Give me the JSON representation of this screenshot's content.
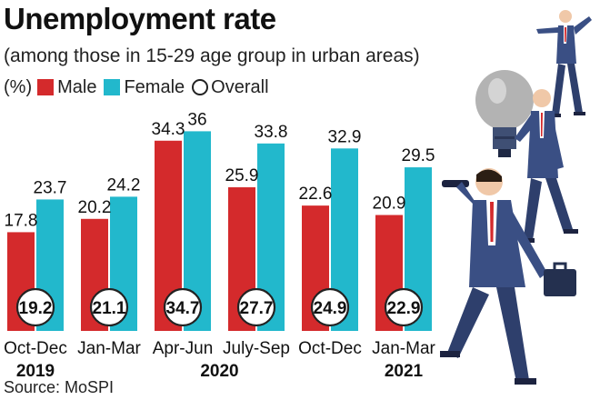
{
  "title": "Unemployment rate",
  "subtitle": "(among those in 15-29 age group in urban areas)",
  "legend": {
    "unit": "(%)",
    "male": "Male",
    "female": "Female",
    "overall": "Overall"
  },
  "colors": {
    "male": "#d42a2c",
    "female": "#22b8cc",
    "text": "#111111"
  },
  "source": "Source: MoSPI",
  "chart_data": {
    "type": "bar",
    "title": "Unemployment rate",
    "subtitle": "(among those in 15-29 age group in urban areas)",
    "ylabel": "(%)",
    "ylim": [
      0,
      38
    ],
    "categories": [
      "Oct-Dec",
      "Jan-Mar",
      "Apr-Jun",
      "July-Sep",
      "Oct-Dec",
      "Jan-Mar"
    ],
    "year_labels": [
      {
        "label": "2019",
        "category_index": 0
      },
      {
        "label": "2020",
        "category_index": 2.5
      },
      {
        "label": "2021",
        "category_index": 5
      }
    ],
    "series": [
      {
        "name": "Male",
        "values": [
          17.8,
          20.2,
          34.3,
          25.9,
          22.6,
          20.9
        ]
      },
      {
        "name": "Female",
        "values": [
          23.7,
          24.2,
          36,
          33.8,
          32.9,
          29.5
        ]
      },
      {
        "name": "Overall",
        "values": [
          19.2,
          21.1,
          34.7,
          27.7,
          24.9,
          22.9
        ]
      }
    ]
  }
}
